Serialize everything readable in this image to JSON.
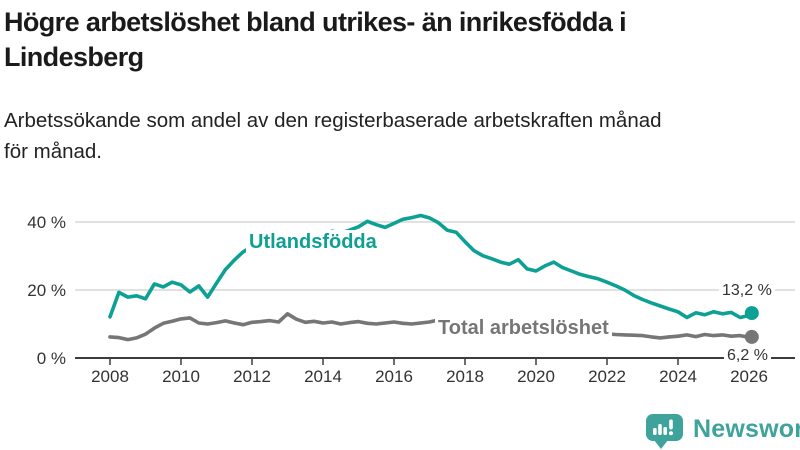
{
  "header": {
    "title": "Högre arbetslöshet bland utrikes- än inrikesfödda i\nLindesberg",
    "subtitle": "Arbetssökande som andel av den registerbaserade arbetskraften månad\nför månad."
  },
  "chart_data": {
    "type": "line",
    "title": "Högre arbetslöshet bland utrikes- än inrikesfödda i Lindesberg",
    "subtitle": "Arbetssökande som andel av den registerbaserade arbetskraften månad för månad.",
    "unit": "%",
    "grid": true,
    "legend_position": "inline-on-line",
    "xlim_years": [
      2007,
      2026.6
    ],
    "ylim": [
      0,
      44
    ],
    "x_ticks": [
      2008,
      2010,
      2012,
      2014,
      2016,
      2018,
      2020,
      2022,
      2024,
      2026
    ],
    "y_ticks": [
      {
        "value": 0,
        "label": "0 %"
      },
      {
        "value": 20,
        "label": "20 %"
      },
      {
        "value": 40,
        "label": "40 %"
      }
    ],
    "x": [
      2008,
      2008.25,
      2008.5,
      2008.75,
      2009,
      2009.25,
      2009.5,
      2009.75,
      2010,
      2010.25,
      2010.5,
      2010.75,
      2011,
      2011.25,
      2011.5,
      2011.75,
      2012,
      2012.25,
      2012.5,
      2012.75,
      2013,
      2013.25,
      2013.5,
      2013.75,
      2014,
      2014.25,
      2014.5,
      2014.75,
      2015,
      2015.25,
      2015.5,
      2015.75,
      2016,
      2016.25,
      2016.5,
      2016.75,
      2017,
      2017.25,
      2017.5,
      2017.75,
      2018,
      2018.25,
      2018.5,
      2018.75,
      2019,
      2019.25,
      2019.5,
      2019.75,
      2020,
      2020.25,
      2020.5,
      2020.75,
      2021,
      2021.25,
      2021.5,
      2021.75,
      2022,
      2022.25,
      2022.5,
      2022.75,
      2023,
      2023.25,
      2023.5,
      2023.75,
      2024,
      2024.25,
      2024.5,
      2024.75,
      2025,
      2025.25,
      2025.5,
      2025.75,
      2026,
      2026.08
    ],
    "series": [
      {
        "name": "Utlandsfödda",
        "color": "#0DA094",
        "end_value": 13.2,
        "end_label": "13,2 %",
        "values": [
          12.1,
          19.3,
          17.9,
          18.3,
          17.4,
          21.8,
          20.9,
          22.3,
          21.5,
          19.4,
          21.2,
          17.9,
          22.0,
          26.0,
          28.8,
          31.2,
          32.8,
          33.4,
          33.1,
          33.8,
          33.2,
          34.0,
          34.6,
          35.1,
          36.0,
          37.3,
          36.8,
          37.6,
          38.6,
          40.2,
          39.2,
          38.4,
          39.6,
          40.8,
          41.3,
          41.9,
          41.2,
          39.8,
          37.6,
          37.0,
          34.2,
          31.6,
          30.1,
          29.2,
          28.2,
          27.6,
          28.9,
          26.2,
          25.6,
          27.1,
          28.2,
          26.6,
          25.6,
          24.6,
          23.9,
          23.3,
          22.3,
          21.2,
          20.0,
          18.4,
          17.2,
          16.2,
          15.3,
          14.4,
          13.6,
          11.9,
          13.3,
          12.7,
          13.6,
          13.0,
          13.4,
          11.9,
          12.5,
          13.2
        ]
      },
      {
        "name": "Total arbetslöshet",
        "color": "#767676",
        "end_value": 6.2,
        "end_label": "6,2 %",
        "values": [
          6.2,
          6.0,
          5.4,
          5.9,
          7.0,
          8.8,
          10.2,
          10.8,
          11.5,
          11.8,
          10.3,
          10.0,
          10.4,
          10.9,
          10.3,
          9.8,
          10.5,
          10.7,
          11.0,
          10.6,
          13.0,
          11.4,
          10.5,
          10.8,
          10.3,
          10.6,
          10.0,
          10.4,
          10.7,
          10.2,
          10.0,
          10.3,
          10.6,
          10.2,
          10.0,
          10.3,
          10.6,
          11.2,
          10.6,
          9.4,
          9.0,
          8.7,
          8.4,
          8.1,
          7.9,
          7.8,
          8.0,
          7.7,
          8.0,
          9.0,
          9.3,
          8.9,
          8.5,
          8.1,
          7.8,
          7.4,
          7.1,
          6.9,
          6.8,
          6.7,
          6.6,
          6.2,
          5.9,
          6.2,
          6.4,
          6.8,
          6.3,
          6.9,
          6.6,
          6.8,
          6.4,
          6.6,
          6.1,
          6.2
        ]
      }
    ],
    "style": {
      "grid_color": "#CFCFCF",
      "axis_color": "#3C3C3C",
      "tick_label_color": "#333333",
      "value_label_color": "#333333"
    }
  },
  "logo": {
    "text": "Newsworthy",
    "color": "#3EA39B",
    "icon": "bar-chart-speech-bubble-icon"
  }
}
